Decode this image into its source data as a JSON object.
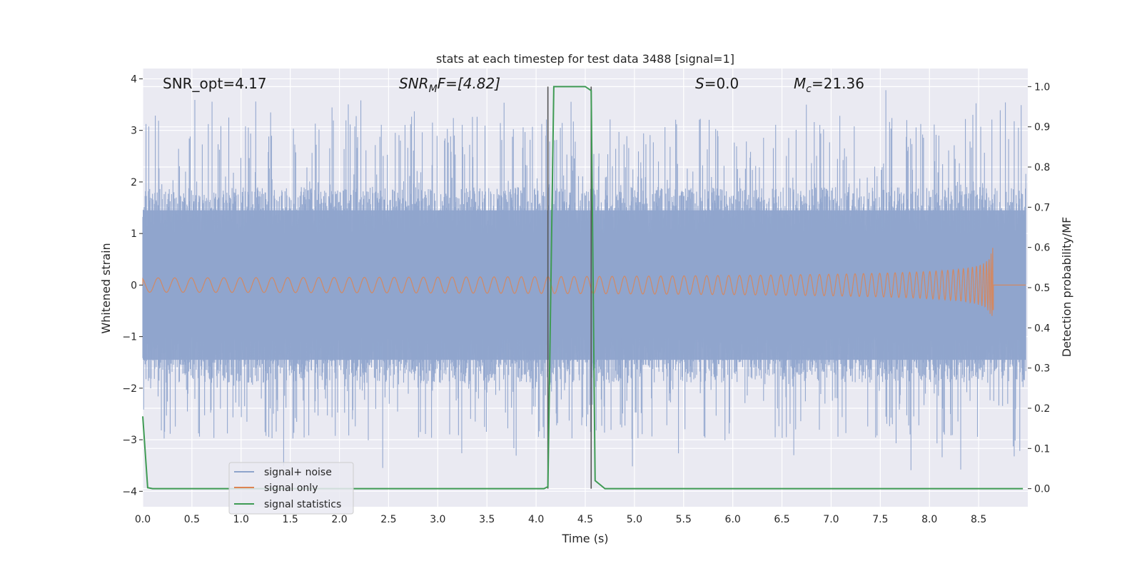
{
  "chart_data": {
    "type": "line",
    "title": "stats at each timestep for test data 3488 [signal=1]",
    "xlabel": "Time (s)",
    "ylabel_left": "Whitened strain",
    "ylabel_right": "Detection probability/MF",
    "xlim": [
      0.0,
      9.0
    ],
    "ylim_left": [
      -4.3,
      4.2
    ],
    "ylim_right": [
      -0.045,
      1.045
    ],
    "x_ticks": [
      "0.0",
      "0.5",
      "1.0",
      "1.5",
      "2.0",
      "2.5",
      "3.0",
      "3.5",
      "4.0",
      "4.5",
      "5.0",
      "5.5",
      "6.0",
      "6.5",
      "7.0",
      "7.5",
      "8.0",
      "8.5"
    ],
    "y_ticks_left": [
      "4",
      "3",
      "2",
      "1",
      "0",
      "−1",
      "−2",
      "−3",
      "−4"
    ],
    "y_ticks_right": [
      "1.0",
      "0.9",
      "0.8",
      "0.7",
      "0.6",
      "0.5",
      "0.4",
      "0.3",
      "0.2",
      "0.1",
      "0.0"
    ],
    "grid": true,
    "legend_position": "lower-left",
    "annotations": {
      "snr_opt": "SNR_opt=4.17",
      "snr_mf_base": "SNR",
      "snr_mf_sub": "M",
      "snr_mf_rest": "F=[4.82]",
      "s_italic": "S",
      "s_value": "=0.0",
      "mc_base": "M",
      "mc_sub": "c",
      "mc_value": "=21.36"
    },
    "vertical_lines_x": [
      4.12,
      4.56
    ],
    "series": [
      {
        "name": "signal+ noise",
        "color": "#8fa4cc",
        "note": "whitened noise band on left axis, typical range about -1.7 to 1.7 with spikes to about ±3.8"
      },
      {
        "name": "signal only",
        "color": "#dd8452",
        "chirp_end_s": 8.65,
        "chirp_peak_amplitude": 0.95
      },
      {
        "name": "signal statistics",
        "color": "#3f9b54",
        "x": [
          0.0,
          0.05,
          0.1,
          0.15,
          4.0,
          4.08,
          4.12,
          4.18,
          4.2,
          4.5,
          4.56,
          4.6,
          4.65,
          4.7,
          8.95
        ],
        "y": [
          0.18,
          0.0025,
          0.0,
          0.0,
          0.0,
          0.0,
          0.005,
          1.0,
          1.0,
          1.0,
          0.99,
          0.02,
          0.01,
          0.0,
          0.0
        ]
      }
    ]
  }
}
